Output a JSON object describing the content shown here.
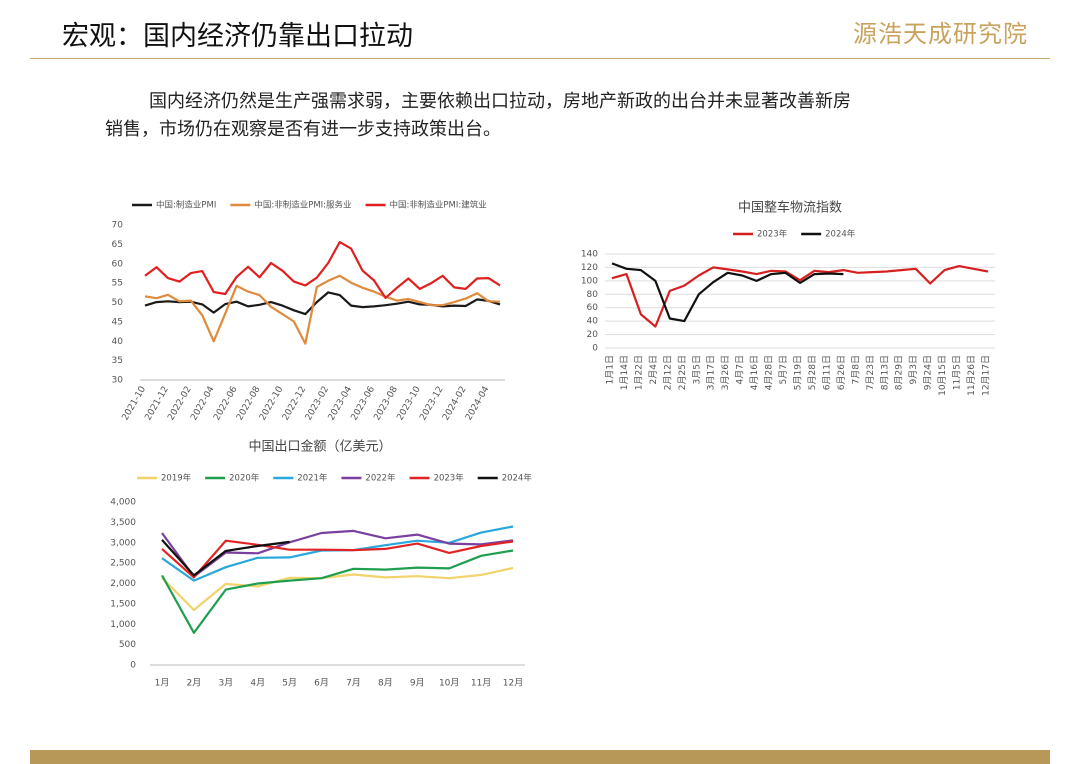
{
  "header": {
    "title": "宏观：国内经济仍靠出口拉动",
    "logo": "源浩天成研究院"
  },
  "paragraph": [
    "国内经济仍然是生产强需求弱，主要依赖出口拉动，房地产新政的出台并未显著改善新房",
    "销售，市场仍在观察是否有进一步支持政策出台。"
  ],
  "chart_data": [
    {
      "type": "line",
      "grid": false,
      "categories": [
        "2021-10",
        null,
        "2021-12",
        null,
        "2022-02",
        null,
        "2022-04",
        null,
        "2022-06",
        null,
        "2022-08",
        null,
        "2022-10",
        null,
        "2022-12",
        null,
        "2023-02",
        null,
        "2023-04",
        null,
        "2023-06",
        null,
        "2023-08",
        null,
        "2023-10",
        null,
        "2023-12",
        null,
        "2024-02",
        null,
        "2024-04",
        null
      ],
      "ylim": [
        30,
        70
      ],
      "yticks": [
        30,
        35,
        40,
        45,
        50,
        55,
        60,
        65,
        70
      ],
      "series": [
        {
          "name": "中国:制造业PMI",
          "color": "#1a1a1a",
          "values": [
            49.2,
            50.1,
            50.3,
            50.1,
            50.2,
            49.5,
            47.4,
            49.6,
            50.2,
            49.0,
            49.4,
            50.1,
            49.2,
            48.0,
            47.0,
            50.1,
            52.6,
            51.9,
            49.2,
            48.8,
            49.0,
            49.3,
            49.7,
            50.2,
            49.5,
            49.4,
            49.0,
            49.2,
            49.1,
            50.8,
            50.4,
            49.5
          ]
        },
        {
          "name": "中国:非制造业PMI:服务业",
          "color": "#e08a3c",
          "values": [
            51.6,
            51.1,
            52.0,
            50.3,
            50.5,
            46.7,
            40.0,
            47.1,
            54.3,
            52.8,
            51.9,
            48.9,
            47.0,
            45.1,
            39.4,
            54.0,
            55.6,
            56.9,
            55.1,
            53.8,
            52.8,
            51.5,
            50.5,
            50.9,
            50.1,
            49.3,
            49.3,
            50.1,
            51.0,
            52.4,
            50.3,
            50.2
          ]
        },
        {
          "name": "中国:非制造业PMI:建筑业",
          "color": "#e02020",
          "values": [
            56.9,
            59.1,
            56.3,
            55.4,
            57.6,
            58.1,
            52.7,
            52.2,
            56.6,
            59.2,
            56.5,
            60.2,
            58.2,
            55.4,
            54.4,
            56.4,
            60.2,
            65.6,
            63.9,
            58.2,
            55.7,
            51.2,
            53.8,
            56.2,
            53.5,
            55.0,
            56.9,
            53.9,
            53.5,
            56.2,
            56.3,
            54.4
          ]
        }
      ]
    },
    {
      "type": "line",
      "title": "中国整车物流指数",
      "grid": true,
      "categories": [
        "1月1日",
        "1月14日",
        "1月22日",
        "2月4日",
        "2月12日",
        "2月25日",
        "3月5日",
        "3月17日",
        "3月26日",
        "4月7日",
        "4月16日",
        "4月28日",
        "5月7日",
        "5月19日",
        "5月28日",
        "6月11日",
        "6月26日",
        "7月8日",
        "7月23日",
        "8月13日",
        "8月29日",
        "9月3日",
        "9月24日",
        "10月15日",
        "11月5日",
        "11月26日",
        "12月17日"
      ],
      "ylim": [
        0,
        140
      ],
      "yticks": [
        0,
        20,
        40,
        60,
        80,
        100,
        120,
        140
      ],
      "series": [
        {
          "name": "2023年",
          "color": "#d62020",
          "values": [
            104,
            110,
            50,
            32,
            85,
            93,
            108,
            120,
            117,
            114,
            110,
            115,
            114,
            101,
            115,
            113,
            116,
            112,
            113,
            114,
            116,
            118,
            96,
            116,
            122,
            118,
            114
          ]
        },
        {
          "name": "2024年",
          "color": "#111111",
          "values": [
            126,
            118,
            116,
            100,
            44,
            40,
            80,
            98,
            112,
            108,
            100,
            110,
            112,
            97,
            110,
            111,
            110,
            null,
            null,
            null,
            null,
            null,
            null,
            null,
            null,
            null,
            null
          ]
        }
      ]
    },
    {
      "type": "line",
      "title": "中国出口金额（亿美元）",
      "grid": false,
      "categories": [
        "1月",
        "2月",
        "3月",
        "4月",
        "5月",
        "6月",
        "7月",
        "8月",
        "9月",
        "10月",
        "11月",
        "12月"
      ],
      "ylim": [
        0,
        4000
      ],
      "yticks": [
        0,
        {
          "value": 500,
          "label": "500"
        },
        {
          "value": 1000,
          "label": "1,000"
        },
        {
          "value": 1500,
          "label": "1,500"
        },
        {
          "value": 2000,
          "label": "2,000"
        },
        {
          "value": 2500,
          "label": "2,500"
        },
        {
          "value": 3000,
          "label": "3,000"
        },
        {
          "value": 3500,
          "label": "3,500"
        },
        {
          "value": 4000,
          "label": "4,000"
        }
      ],
      "series": [
        {
          "name": "2019年",
          "color": "#f2d36b",
          "values": [
            2140,
            1350,
            1990,
            1930,
            2140,
            2130,
            2220,
            2150,
            2180,
            2130,
            2210,
            2380
          ]
        },
        {
          "name": "2020年",
          "color": "#1f9e4f",
          "values": [
            2200,
            790,
            1850,
            2000,
            2070,
            2130,
            2360,
            2340,
            2390,
            2370,
            2680,
            2810
          ]
        },
        {
          "name": "2021年",
          "color": "#2aa7dc",
          "values": [
            2620,
            2070,
            2400,
            2630,
            2640,
            2810,
            2820,
            2940,
            3050,
            3000,
            3250,
            3400
          ]
        },
        {
          "name": "2022年",
          "color": "#7b3fa0",
          "values": [
            3240,
            2170,
            2760,
            2740,
            3010,
            3240,
            3290,
            3110,
            3200,
            2980,
            2960,
            3060
          ]
        },
        {
          "name": "2023年",
          "color": "#e02424",
          "values": [
            2850,
            2150,
            3050,
            2950,
            2830,
            2830,
            2820,
            2850,
            2980,
            2750,
            2920,
            3030
          ]
        },
        {
          "name": "2024年",
          "color": "#111111",
          "values": [
            3070,
            2200,
            2800,
            2920,
            3020,
            null,
            null,
            null,
            null,
            null,
            null,
            null
          ]
        }
      ]
    }
  ]
}
